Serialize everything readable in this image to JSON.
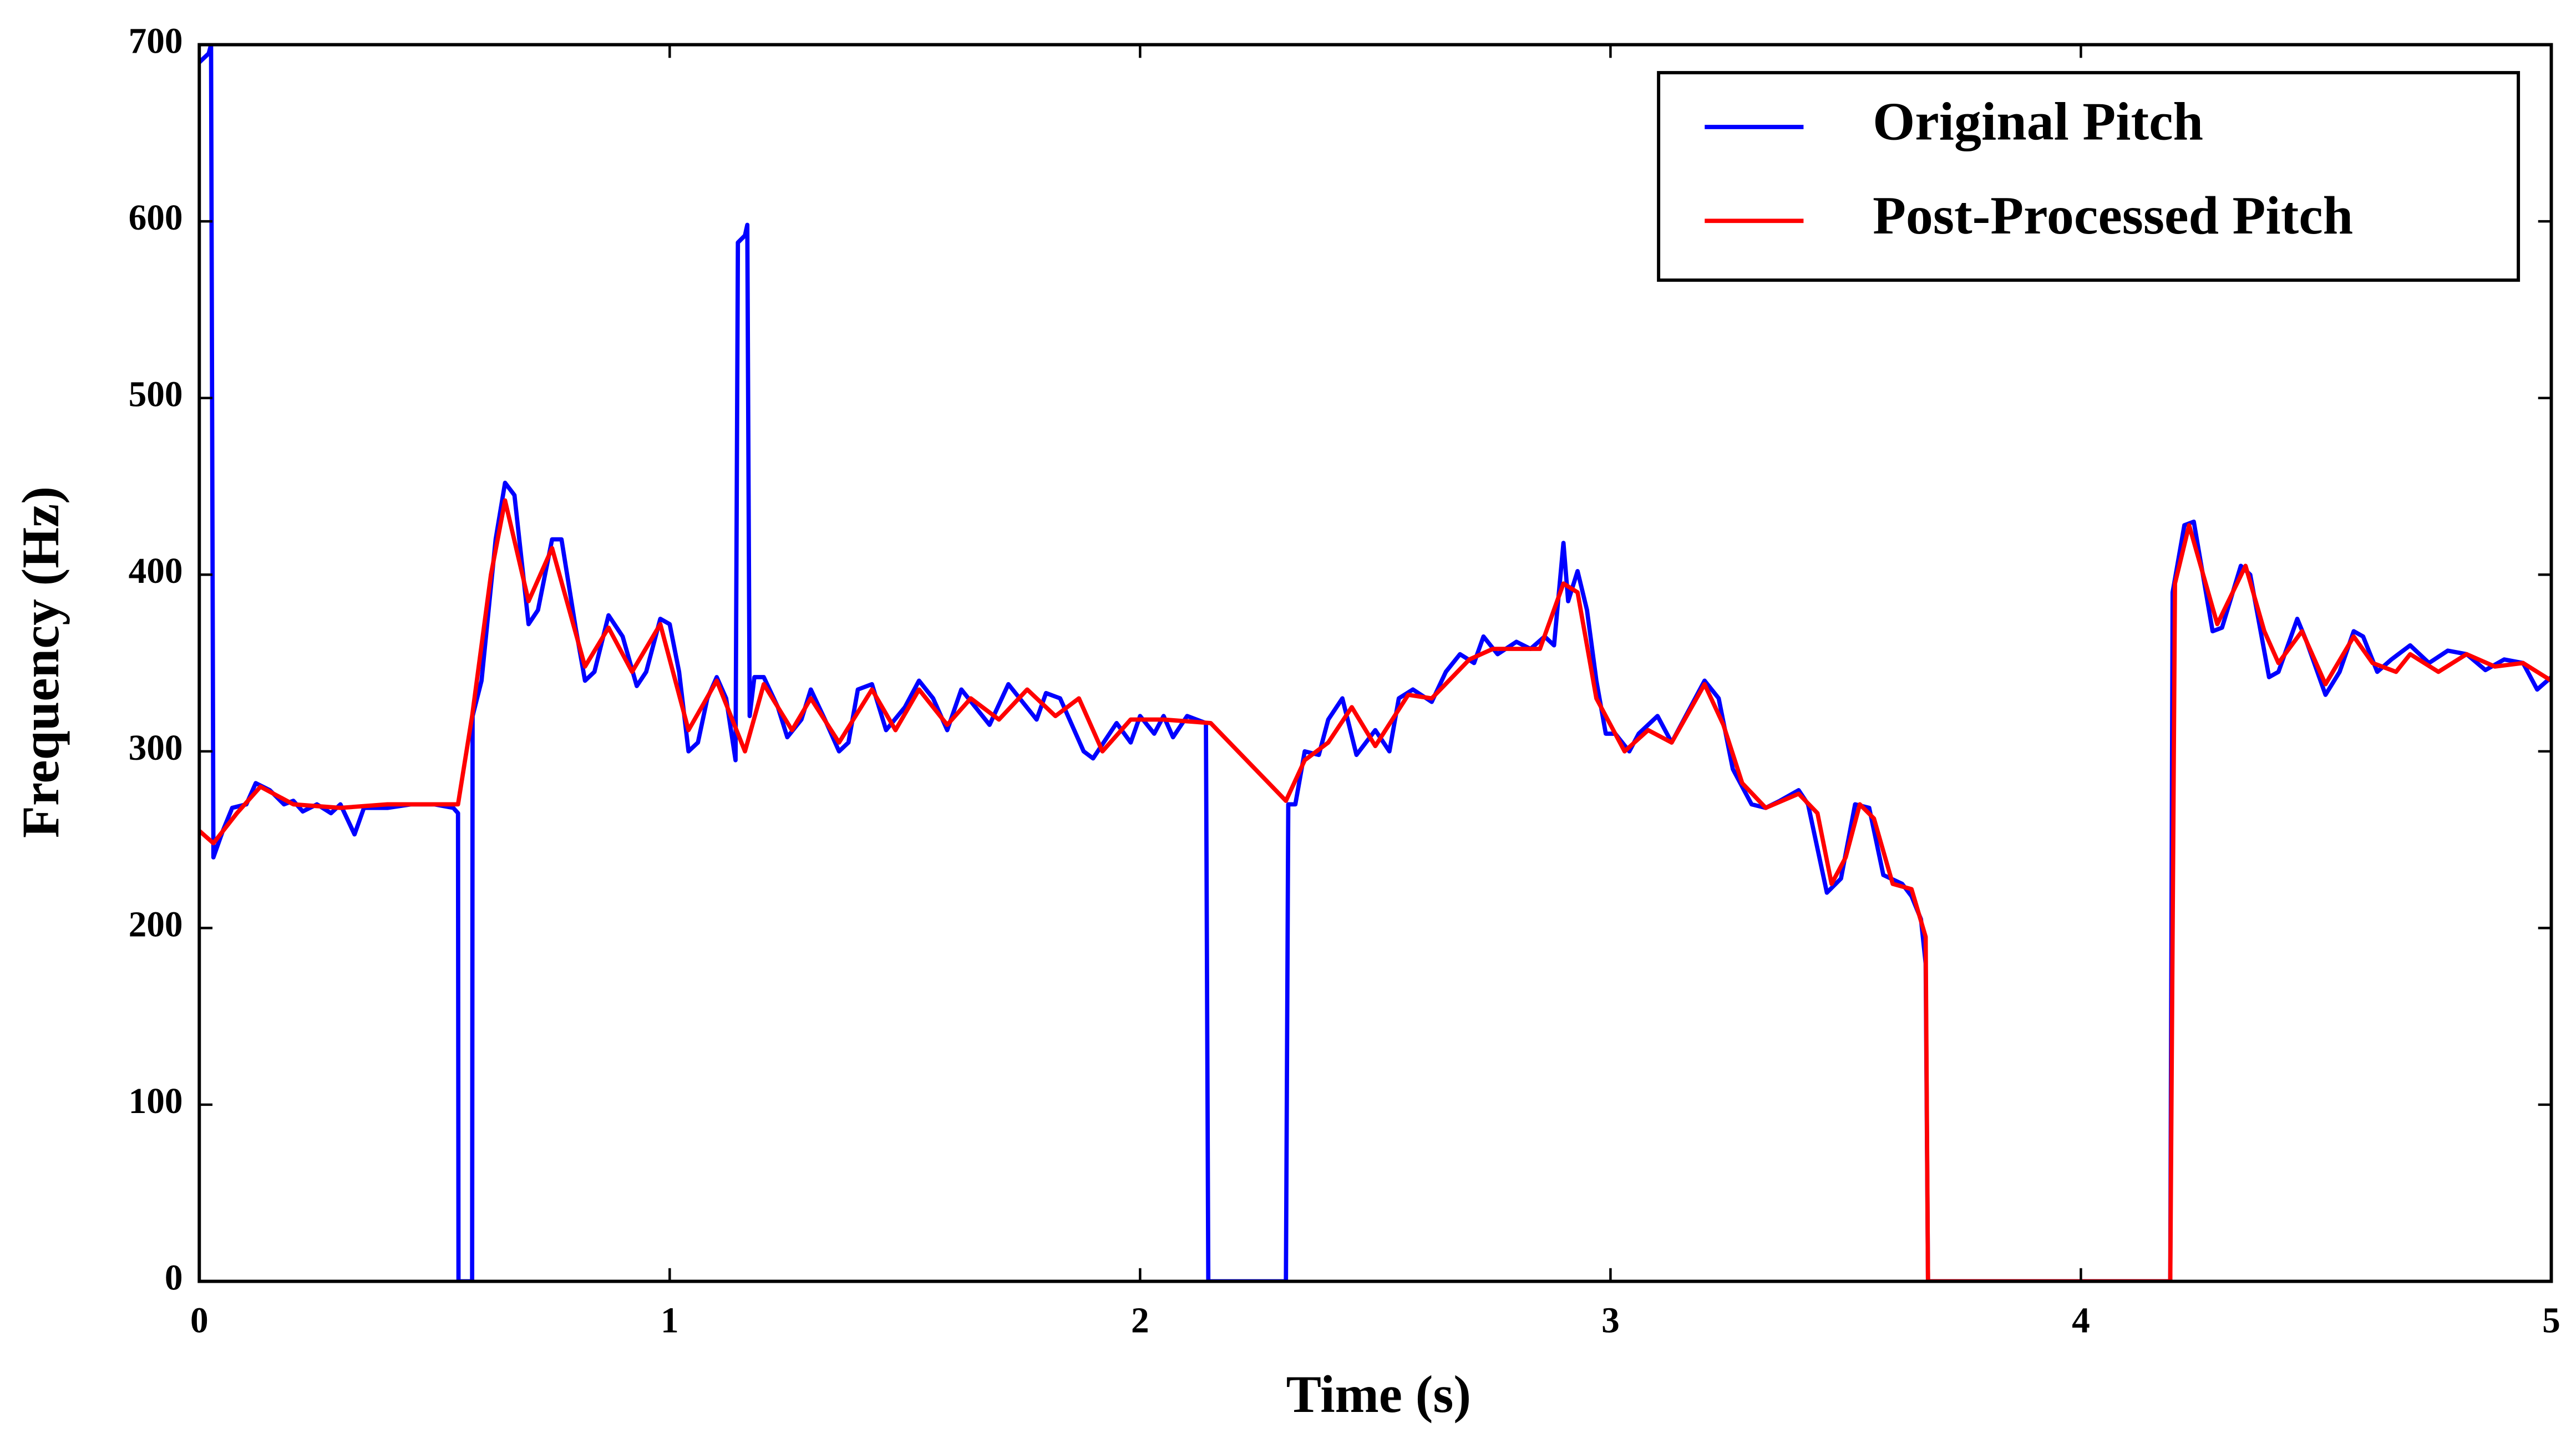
{
  "chart_data": {
    "type": "line",
    "x_label": "Time (s)",
    "y_label": "Frequency (Hz)",
    "xlim": [
      0,
      5
    ],
    "xticks": [
      0,
      1,
      2,
      3,
      4,
      5
    ],
    "ylim": [
      0,
      700
    ],
    "yticks": [
      0,
      100,
      200,
      300,
      400,
      500,
      600,
      700
    ],
    "legend": "upper right",
    "series": [
      {
        "name": "Original Pitch",
        "color": "#0000ff",
        "x": [
          0,
          0.02,
          0.025,
          0.03,
          0.05,
          0.07,
          0.1,
          0.12,
          0.15,
          0.18,
          0.2,
          0.22,
          0.25,
          0.28,
          0.3,
          0.33,
          0.35,
          0.4,
          0.45,
          0.5,
          0.54,
          0.55,
          0.551,
          0.58,
          0.581,
          0.6,
          0.63,
          0.65,
          0.67,
          0.7,
          0.72,
          0.75,
          0.77,
          0.8,
          0.82,
          0.84,
          0.87,
          0.9,
          0.93,
          0.95,
          0.98,
          1.0,
          1.02,
          1.04,
          1.06,
          1.08,
          1.1,
          1.12,
          1.14,
          1.145,
          1.16,
          1.165,
          1.17,
          1.18,
          1.2,
          1.23,
          1.25,
          1.28,
          1.3,
          1.33,
          1.36,
          1.38,
          1.4,
          1.43,
          1.46,
          1.5,
          1.53,
          1.56,
          1.59,
          1.62,
          1.65,
          1.68,
          1.72,
          1.75,
          1.78,
          1.8,
          1.83,
          1.88,
          1.9,
          1.95,
          1.98,
          2.0,
          2.03,
          2.05,
          2.07,
          2.1,
          2.14,
          2.145,
          2.31,
          2.315,
          2.33,
          2.35,
          2.38,
          2.4,
          2.43,
          2.46,
          2.5,
          2.53,
          2.55,
          2.58,
          2.62,
          2.65,
          2.68,
          2.71,
          2.73,
          2.76,
          2.8,
          2.83,
          2.86,
          2.88,
          2.9,
          2.91,
          2.93,
          2.95,
          2.97,
          2.99,
          3.01,
          3.04,
          3.06,
          3.1,
          3.13,
          3.16,
          3.2,
          3.23,
          3.26,
          3.3,
          3.33,
          3.36,
          3.4,
          3.42,
          3.46,
          3.49,
          3.52,
          3.55,
          3.58,
          3.62,
          3.64,
          3.66,
          3.67,
          3.675,
          4.19,
          4.195,
          4.22,
          4.24,
          4.28,
          4.3,
          4.34,
          4.36,
          4.4,
          4.42,
          4.46,
          4.48,
          4.52,
          4.55,
          4.58,
          4.6,
          4.63,
          4.66,
          4.7,
          4.74,
          4.78,
          4.82,
          4.86,
          4.9,
          4.94,
          4.97,
          5.0
        ],
        "values": [
          690,
          695,
          700,
          240,
          255,
          268,
          270,
          282,
          278,
          270,
          272,
          266,
          270,
          265,
          270,
          253,
          268,
          268,
          270,
          270,
          268,
          265,
          0,
          0,
          320,
          340,
          420,
          452,
          445,
          372,
          380,
          420,
          420,
          370,
          340,
          345,
          377,
          365,
          337,
          345,
          375,
          372,
          345,
          300,
          305,
          330,
          342,
          330,
          295,
          588,
          592,
          598,
          320,
          342,
          342,
          325,
          308,
          318,
          335,
          318,
          300,
          305,
          335,
          338,
          312,
          325,
          340,
          330,
          312,
          335,
          325,
          315,
          338,
          328,
          318,
          333,
          330,
          300,
          296,
          316,
          305,
          320,
          310,
          320,
          308,
          320,
          316,
          0,
          0,
          270,
          270,
          300,
          298,
          318,
          330,
          298,
          312,
          300,
          330,
          335,
          328,
          345,
          355,
          350,
          365,
          355,
          362,
          358,
          365,
          360,
          418,
          385,
          402,
          380,
          340,
          310,
          310,
          300,
          310,
          320,
          305,
          320,
          340,
          330,
          290,
          270,
          268,
          272,
          278,
          270,
          220,
          228,
          270,
          268,
          230,
          225,
          218,
          205,
          180,
          0,
          0,
          390,
          428,
          430,
          368,
          370,
          405,
          400,
          342,
          345,
          375,
          362,
          332,
          345,
          368,
          365,
          345,
          352,
          360,
          350,
          357,
          355,
          346,
          352,
          350,
          335,
          342
        ]
      },
      {
        "name": "Post-Processed Pitch",
        "color": "#ff0000",
        "x": [
          0,
          0.03,
          0.08,
          0.13,
          0.2,
          0.3,
          0.4,
          0.55,
          0.58,
          0.62,
          0.65,
          0.7,
          0.75,
          0.82,
          0.87,
          0.92,
          0.98,
          1.04,
          1.1,
          1.16,
          1.2,
          1.26,
          1.3,
          1.36,
          1.43,
          1.48,
          1.53,
          1.59,
          1.64,
          1.7,
          1.76,
          1.82,
          1.87,
          1.92,
          1.98,
          2.05,
          2.15,
          2.31,
          2.35,
          2.4,
          2.45,
          2.5,
          2.57,
          2.62,
          2.7,
          2.75,
          2.85,
          2.9,
          2.93,
          2.97,
          3.03,
          3.08,
          3.13,
          3.2,
          3.24,
          3.28,
          3.33,
          3.4,
          3.44,
          3.47,
          3.5,
          3.53,
          3.56,
          3.6,
          3.64,
          3.67,
          3.675,
          4.19,
          4.2,
          4.23,
          4.26,
          4.29,
          4.35,
          4.39,
          4.42,
          4.47,
          4.52,
          4.58,
          4.62,
          4.67,
          4.7,
          4.76,
          4.82,
          4.88,
          4.94,
          5.0
        ],
        "values": [
          255,
          248,
          265,
          280,
          270,
          268,
          270,
          270,
          320,
          400,
          442,
          385,
          415,
          348,
          370,
          345,
          372,
          312,
          340,
          300,
          338,
          312,
          330,
          305,
          335,
          312,
          335,
          315,
          330,
          318,
          335,
          320,
          330,
          300,
          318,
          318,
          316,
          272,
          295,
          305,
          325,
          303,
          332,
          330,
          352,
          358,
          358,
          395,
          390,
          330,
          300,
          312,
          305,
          338,
          315,
          282,
          268,
          276,
          265,
          225,
          240,
          270,
          262,
          225,
          222,
          195,
          0,
          0,
          395,
          428,
          400,
          372,
          405,
          368,
          350,
          368,
          338,
          365,
          350,
          345,
          355,
          345,
          355,
          348,
          350,
          340
        ]
      }
    ]
  }
}
